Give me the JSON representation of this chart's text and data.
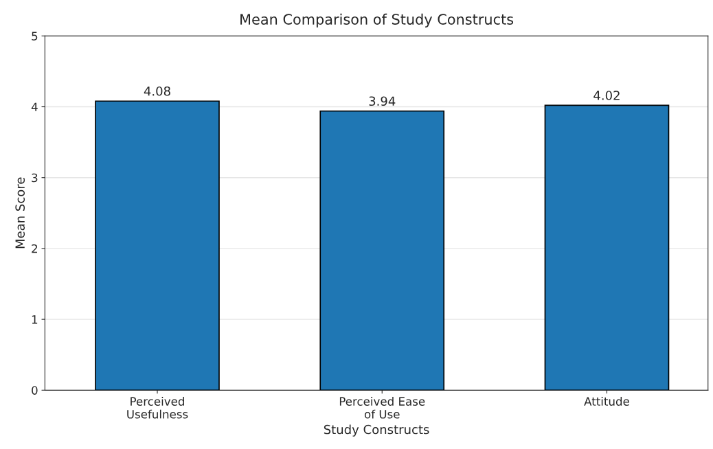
{
  "chart_data": {
    "type": "bar",
    "title": "Mean Comparison of Study Constructs",
    "xlabel": "Study Constructs",
    "ylabel": "Mean Score",
    "categories": [
      "Perceived\nUsefulness",
      "Perceived Ease\nof Use",
      "Attitude"
    ],
    "values": [
      4.08,
      3.94,
      4.02
    ],
    "color": "#1f77b4",
    "ylim": [
      0,
      5
    ],
    "yticks": [
      0,
      1,
      2,
      3,
      4,
      5
    ],
    "grid": "y",
    "data_labels": true
  }
}
